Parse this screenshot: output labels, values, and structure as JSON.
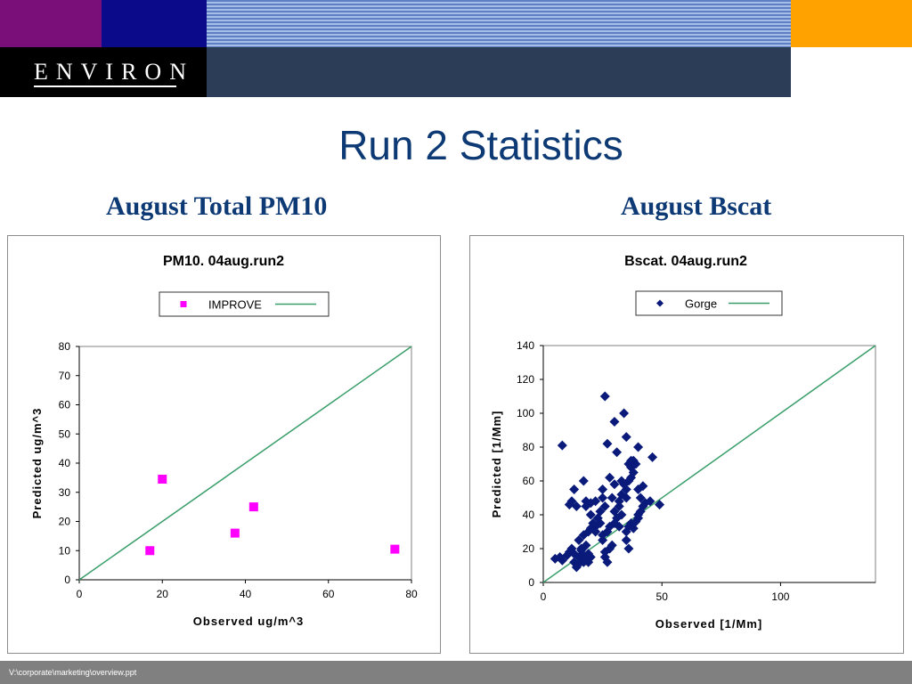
{
  "header": {
    "logo_text": "ENVIRON",
    "colors": {
      "purple": "#7a0f7a",
      "navy": "#0a0a8a",
      "orange": "#ffa200",
      "black": "#000000",
      "slate": "#2c3d57"
    }
  },
  "slide": {
    "title": "Run 2 Statistics",
    "subtitle_left": "August Total PM10",
    "subtitle_right": "August Bscat"
  },
  "footer": {
    "path": "V:\\corporate\\marketing\\overview.ppt"
  },
  "chart_data": [
    {
      "type": "scatter",
      "title": "PM10.  04aug.run2",
      "xlabel": "Observed  ug/m^3",
      "ylabel": "Predicted ug/m^3",
      "xlim": [
        0,
        80
      ],
      "ylim": [
        0,
        80
      ],
      "xticks": [
        0,
        20,
        40,
        60,
        80
      ],
      "yticks": [
        0,
        10,
        20,
        30,
        40,
        50,
        60,
        70,
        80
      ],
      "grid": false,
      "legend_position": "top-center",
      "series": [
        {
          "name": "IMPROVE",
          "marker": "square",
          "color": "#ff00ff",
          "points": [
            [
              17,
              10
            ],
            [
              20,
              34.5
            ],
            [
              37.5,
              16
            ],
            [
              42,
              25
            ],
            [
              76,
              10.5
            ]
          ]
        }
      ],
      "reference_line": {
        "from": [
          0,
          0
        ],
        "to": [
          80,
          80
        ],
        "color": "#3a9e6a"
      }
    },
    {
      "type": "scatter",
      "title": "Bscat. 04aug.run2",
      "xlabel": "Observed  [1/Mm]",
      "ylabel": "Predicted [1/Mm]",
      "xlim": [
        0,
        140
      ],
      "ylim": [
        0,
        140
      ],
      "xticks": [
        0,
        50,
        100
      ],
      "yticks": [
        0,
        20,
        40,
        60,
        80,
        100,
        120,
        140
      ],
      "grid": false,
      "legend_position": "top-center",
      "series": [
        {
          "name": "Gorge",
          "marker": "diamond",
          "color": "#0a1a7a",
          "points": [
            [
              5,
              14
            ],
            [
              7,
              15
            ],
            [
              8,
              13
            ],
            [
              10,
              16
            ],
            [
              11,
              18
            ],
            [
              12,
              20
            ],
            [
              13,
              12
            ],
            [
              13,
              17
            ],
            [
              14,
              9
            ],
            [
              15,
              15
            ],
            [
              15,
              11
            ],
            [
              16,
              14
            ],
            [
              16,
              19
            ],
            [
              17,
              12
            ],
            [
              17,
              16
            ],
            [
              18,
              13
            ],
            [
              18,
              22
            ],
            [
              19,
              17
            ],
            [
              20,
              15
            ],
            [
              15,
              25
            ],
            [
              17,
              28
            ],
            [
              19,
              30
            ],
            [
              20,
              32
            ],
            [
              21,
              35
            ],
            [
              22,
              33
            ],
            [
              23,
              38
            ],
            [
              20,
              40
            ],
            [
              18,
              45
            ],
            [
              20,
              47
            ],
            [
              22,
              48
            ],
            [
              25,
              50
            ],
            [
              26,
              45
            ],
            [
              24,
              42
            ],
            [
              22,
              30
            ],
            [
              24,
              35
            ],
            [
              25,
              28
            ],
            [
              25,
              25
            ],
            [
              26,
              18
            ],
            [
              26,
              15
            ],
            [
              27,
              12
            ],
            [
              28,
              20
            ],
            [
              29,
              22
            ],
            [
              27,
              30
            ],
            [
              28,
              33
            ],
            [
              30,
              35
            ],
            [
              31,
              38
            ],
            [
              30,
              42
            ],
            [
              32,
              45
            ],
            [
              33,
              40
            ],
            [
              32,
              48
            ],
            [
              33,
              52
            ],
            [
              35,
              50
            ],
            [
              35,
              55
            ],
            [
              34,
              58
            ],
            [
              36,
              60
            ],
            [
              37,
              62
            ],
            [
              38,
              65
            ],
            [
              37,
              68
            ],
            [
              36,
              70
            ],
            [
              38,
              72
            ],
            [
              39,
              70
            ],
            [
              35,
              30
            ],
            [
              36,
              33
            ],
            [
              37,
              35
            ],
            [
              38,
              32
            ],
            [
              39,
              36
            ],
            [
              40,
              38
            ],
            [
              40,
              40
            ],
            [
              41,
              42
            ],
            [
              42,
              45
            ],
            [
              41,
              50
            ],
            [
              40,
              55
            ],
            [
              42,
              57
            ],
            [
              43,
              47
            ],
            [
              45,
              48
            ],
            [
              46,
              74
            ],
            [
              49,
              46
            ],
            [
              40,
              80
            ],
            [
              34,
              100
            ],
            [
              30,
              95
            ],
            [
              27,
              82
            ],
            [
              31,
              77
            ],
            [
              26,
              110
            ],
            [
              35,
              86
            ],
            [
              37,
              72
            ],
            [
              8,
              81
            ],
            [
              13,
              55
            ],
            [
              17,
              60
            ],
            [
              11,
              46
            ],
            [
              14,
              45
            ],
            [
              18,
              48
            ],
            [
              21,
              35
            ],
            [
              30,
              58
            ],
            [
              33,
              60
            ],
            [
              28,
              62
            ],
            [
              25,
              55
            ],
            [
              35,
              25
            ],
            [
              36,
              20
            ],
            [
              29,
              50
            ],
            [
              32,
              33
            ],
            [
              12,
              48
            ],
            [
              16,
              20
            ],
            [
              19,
              12
            ]
          ]
        }
      ],
      "reference_line": {
        "from": [
          0,
          0
        ],
        "to": [
          140,
          140
        ],
        "color": "#3a9e6a"
      }
    }
  ]
}
